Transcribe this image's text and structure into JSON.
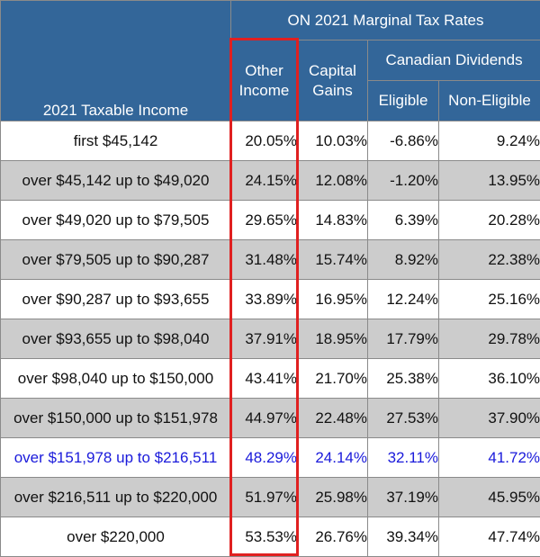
{
  "header": {
    "title": "ON 2021 Marginal Tax Rates",
    "income_label": "2021 Taxable Income",
    "other_income_line1": "Other",
    "other_income_line2": "Income",
    "capital_gains_line1": "Capital",
    "capital_gains_line2": "Gains",
    "canadian_dividends": "Canadian Dividends",
    "eligible": "Eligible",
    "non_eligible": "Non-Eligible"
  },
  "rows": [
    {
      "income": "first $45,142",
      "other": "20.05%",
      "capital": "10.03%",
      "eligible": "-6.86%",
      "non_eligible": "9.24%"
    },
    {
      "income": "over $45,142 up to $49,020",
      "other": "24.15%",
      "capital": "12.08%",
      "eligible": "-1.20%",
      "non_eligible": "13.95%"
    },
    {
      "income": "over $49,020 up to $79,505",
      "other": "29.65%",
      "capital": "14.83%",
      "eligible": "6.39%",
      "non_eligible": "20.28%"
    },
    {
      "income": "over $79,505 up to $90,287",
      "other": "31.48%",
      "capital": "15.74%",
      "eligible": "8.92%",
      "non_eligible": "22.38%"
    },
    {
      "income": "over $90,287 up to $93,655",
      "other": "33.89%",
      "capital": "16.95%",
      "eligible": "12.24%",
      "non_eligible": "25.16%"
    },
    {
      "income": "over $93,655 up to $98,040",
      "other": "37.91%",
      "capital": "18.95%",
      "eligible": "17.79%",
      "non_eligible": "29.78%"
    },
    {
      "income": "over $98,040 up to $150,000",
      "other": "43.41%",
      "capital": "21.70%",
      "eligible": "25.38%",
      "non_eligible": "36.10%"
    },
    {
      "income": "over $150,000 up to $151,978",
      "other": "44.97%",
      "capital": "22.48%",
      "eligible": "27.53%",
      "non_eligible": "37.90%"
    },
    {
      "income": "over $151,978 up to $216,511",
      "other": "48.29%",
      "capital": "24.14%",
      "eligible": "32.11%",
      "non_eligible": "41.72%"
    },
    {
      "income": "over $216,511 up to $220,000",
      "other": "51.97%",
      "capital": "25.98%",
      "eligible": "37.19%",
      "non_eligible": "45.95%"
    },
    {
      "income": "over $220,000",
      "other": "53.53%",
      "capital": "26.76%",
      "eligible": "39.34%",
      "non_eligible": "47.74%"
    }
  ],
  "colors": {
    "header_bg": "#336699",
    "shaded_row_bg": "#cccccc",
    "highlight_text": "#1a1adb",
    "highlight_box": "#e02020"
  }
}
